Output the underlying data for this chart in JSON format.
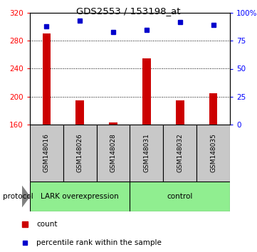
{
  "title": "GDS2553 / 153198_at",
  "samples": [
    "GSM148016",
    "GSM148026",
    "GSM148028",
    "GSM148031",
    "GSM148032",
    "GSM148035"
  ],
  "count_values": [
    290,
    195,
    163,
    255,
    195,
    205
  ],
  "percentile_values": [
    88,
    93,
    83,
    85,
    92,
    89
  ],
  "ylim_left": [
    160,
    320
  ],
  "ylim_right": [
    0,
    100
  ],
  "yticks_left": [
    160,
    200,
    240,
    280,
    320
  ],
  "yticks_right": [
    0,
    25,
    50,
    75,
    100
  ],
  "ytick_labels_right": [
    "0",
    "25",
    "50",
    "75",
    "100%"
  ],
  "bar_color": "#cc0000",
  "marker_color": "#0000cc",
  "grid_values": [
    200,
    240,
    280
  ],
  "group1_label": "LARK overexpression",
  "group2_label": "control",
  "group_color": "#90ee90",
  "protocol_label": "protocol",
  "legend_count_label": "count",
  "legend_percentile_label": "percentile rank within the sample",
  "sample_bg_color": "#c8c8c8",
  "n_group1": 3,
  "n_group2": 3
}
